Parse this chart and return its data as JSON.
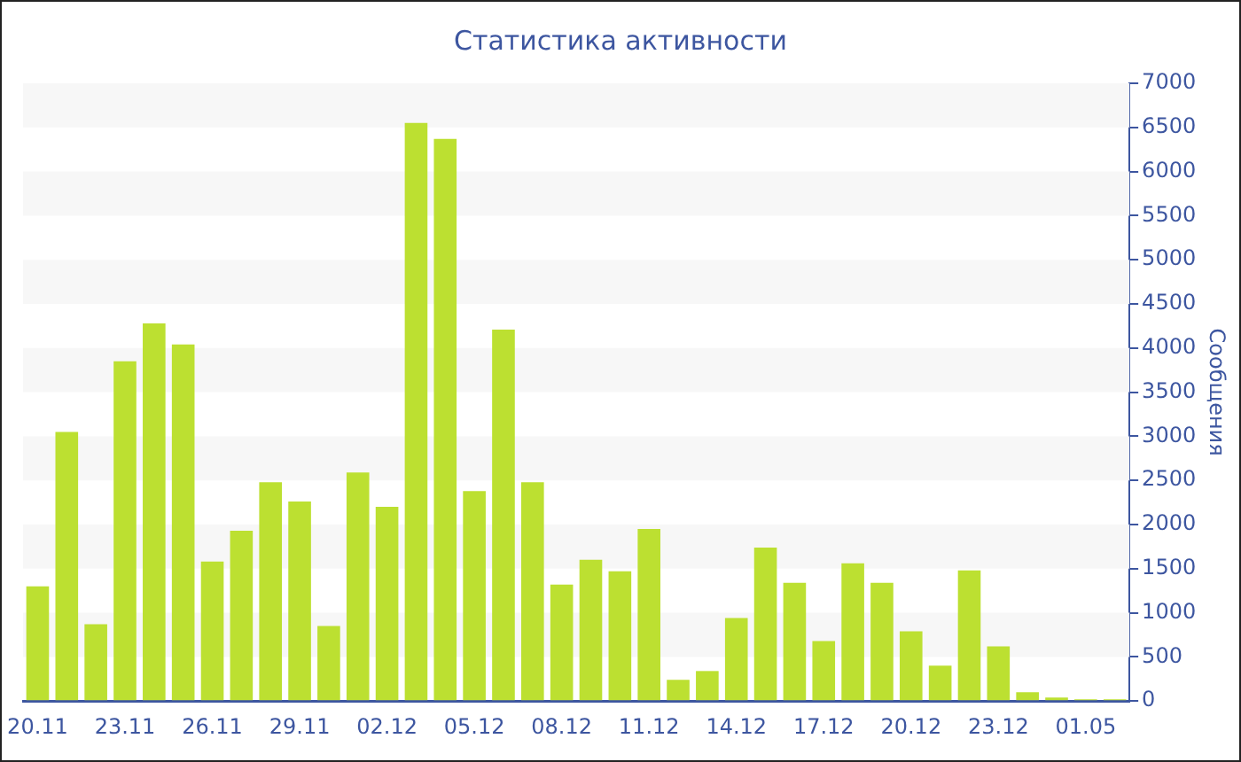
{
  "chart_data": {
    "type": "bar",
    "title": "Статистика активности",
    "ylabel": "Сообщения",
    "categories": [
      "20.11",
      null,
      null,
      "23.11",
      null,
      null,
      "26.11",
      null,
      null,
      "29.11",
      null,
      null,
      "02.12",
      null,
      null,
      "05.12",
      null,
      null,
      "08.12",
      null,
      null,
      "11.12",
      null,
      null,
      "14.12",
      null,
      null,
      "17.12",
      null,
      null,
      "20.12",
      null,
      null,
      "23.12",
      null,
      null,
      "01.05",
      null
    ],
    "values": [
      1300,
      3050,
      870,
      3850,
      4280,
      4040,
      1580,
      1930,
      2480,
      2260,
      850,
      2590,
      2200,
      6550,
      6370,
      2380,
      4210,
      2480,
      1320,
      1600,
      1470,
      1950,
      240,
      340,
      940,
      1740,
      1340,
      680,
      1560,
      1340,
      790,
      400,
      1480,
      620,
      100,
      40,
      20,
      20
    ],
    "color": "#bce031",
    "ylim": [
      0,
      7000
    ],
    "yticks": [
      0,
      500,
      1000,
      1500,
      2000,
      2500,
      3000,
      3500,
      4000,
      4500,
      5000,
      5500,
      6000,
      6500,
      7000
    ],
    "bands": [
      {
        "axis": "y",
        "from": 500,
        "to": 1000,
        "color": "#f7f7f7"
      },
      {
        "axis": "y",
        "from": 1500,
        "to": 2000,
        "color": "#f7f7f7"
      },
      {
        "axis": "y",
        "from": 2500,
        "to": 3000,
        "color": "#f7f7f7"
      },
      {
        "axis": "y",
        "from": 3500,
        "to": 4000,
        "color": "#f7f7f7"
      },
      {
        "axis": "y",
        "from": 4500,
        "to": 5000,
        "color": "#f7f7f7"
      },
      {
        "axis": "y",
        "from": 5500,
        "to": 6000,
        "color": "#f7f7f7"
      },
      {
        "axis": "y",
        "from": 6500,
        "to": 7000,
        "color": "#f7f7f7"
      }
    ]
  }
}
